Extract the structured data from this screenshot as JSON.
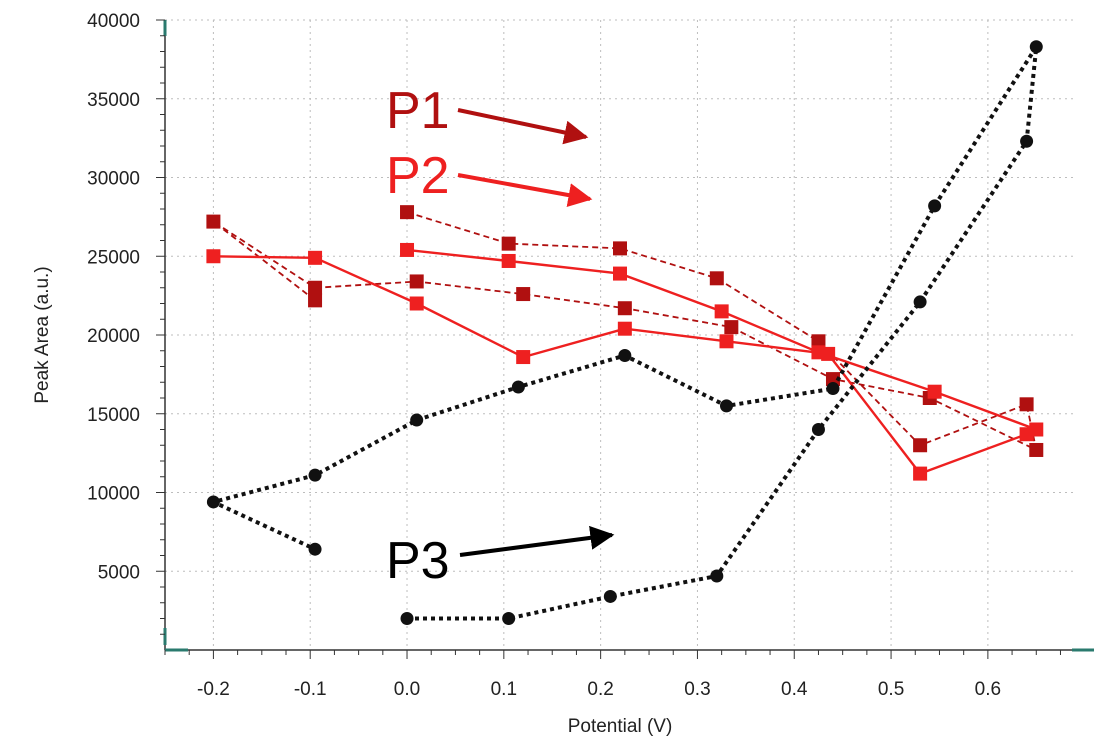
{
  "chart_data": {
    "type": "line",
    "title": "",
    "xlabel": "Potential (V)",
    "ylabel": "Peak Area (a.u.)",
    "xlim": [
      -0.25,
      0.69
    ],
    "ylim": [
      0,
      40000
    ],
    "x_ticks": [
      -0.2,
      -0.1,
      0.0,
      0.1,
      0.2,
      0.3,
      0.4,
      0.5,
      0.6
    ],
    "x_tick_labels": [
      "-0.2",
      "-0.1",
      "0.0",
      "0.1",
      "0.2",
      "0.3",
      "0.4",
      "0.5",
      "0.6"
    ],
    "y_ticks": [
      5000,
      10000,
      15000,
      20000,
      25000,
      30000,
      35000,
      40000
    ],
    "y_tick_labels": [
      "5000",
      "10000",
      "15000",
      "20000",
      "25000",
      "30000",
      "35000",
      "40000"
    ],
    "grid": true,
    "legend": "none",
    "series": [
      {
        "key": "p1",
        "color": "#b01010",
        "line_style": "dashed",
        "marker": "square",
        "points": [
          [
            0.0,
            27800
          ],
          [
            0.105,
            25800
          ],
          [
            0.22,
            25500
          ],
          [
            0.32,
            23600
          ],
          [
            0.425,
            19600
          ],
          [
            0.53,
            13000
          ],
          [
            0.64,
            15600
          ],
          [
            0.65,
            12700
          ],
          [
            0.54,
            16000
          ],
          [
            0.44,
            17200
          ],
          [
            0.335,
            20500
          ],
          [
            0.225,
            21700
          ],
          [
            0.12,
            22600
          ],
          [
            0.01,
            23400
          ],
          [
            -0.095,
            23000
          ],
          [
            -0.2,
            27200
          ],
          [
            -0.095,
            22200
          ]
        ]
      },
      {
        "key": "p2",
        "color": "#ee2020",
        "line_style": "solid",
        "marker": "square",
        "points": [
          [
            0.0,
            25400
          ],
          [
            0.105,
            24700
          ],
          [
            0.22,
            23900
          ],
          [
            0.325,
            21500
          ],
          [
            0.425,
            18900
          ],
          [
            0.545,
            16400
          ],
          [
            0.65,
            14000
          ],
          [
            0.64,
            13700
          ],
          [
            0.53,
            11200
          ],
          [
            0.435,
            18800
          ],
          [
            0.33,
            19600
          ],
          [
            0.225,
            20400
          ],
          [
            0.12,
            18600
          ],
          [
            0.01,
            22000
          ],
          [
            -0.095,
            24900
          ],
          [
            -0.2,
            25000
          ]
        ]
      },
      {
        "key": "p3",
        "color": "#111111",
        "line_style": "dotted",
        "marker": "circle",
        "points": [
          [
            0.0,
            2000
          ],
          [
            0.105,
            2000
          ],
          [
            0.21,
            3400
          ],
          [
            0.32,
            4700
          ],
          [
            0.425,
            14000
          ],
          [
            0.53,
            22100
          ],
          [
            0.64,
            32300
          ],
          [
            0.65,
            38300
          ],
          [
            0.545,
            28200
          ],
          [
            0.44,
            16600
          ],
          [
            0.33,
            15500
          ],
          [
            0.225,
            18700
          ],
          [
            0.115,
            16700
          ],
          [
            0.01,
            14600
          ],
          [
            -0.095,
            11100
          ],
          [
            -0.2,
            9400
          ],
          [
            -0.095,
            6400
          ]
        ]
      }
    ],
    "annotations": [
      {
        "label": "P1",
        "color": "#b01010"
      },
      {
        "label": "P2",
        "color": "#ee2020"
      },
      {
        "label": "P3",
        "color": "#000000"
      }
    ]
  }
}
